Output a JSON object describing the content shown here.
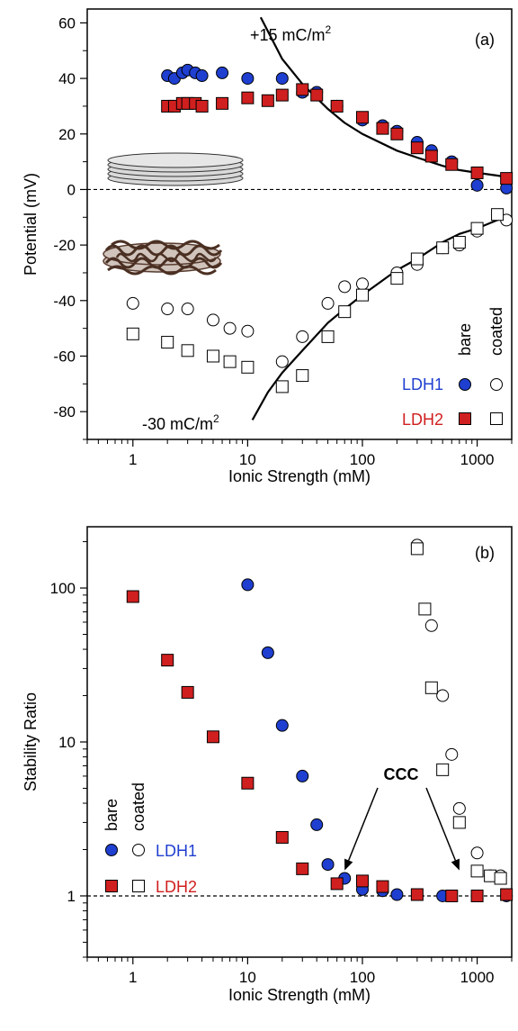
{
  "chart_data": [
    {
      "type": "scatter",
      "panel_label": "(a)",
      "xlabel": "Ionic Strength (mM)",
      "ylabel": "Potential (mV)",
      "xscale": "log",
      "xlim": [
        0.4,
        2000
      ],
      "ylim": [
        -90,
        65
      ],
      "x_ticks": [
        1,
        10,
        100,
        1000
      ],
      "x_tick_labels": [
        "1",
        "10",
        "100",
        "1000"
      ],
      "y_ticks": [
        -80,
        -60,
        -40,
        -20,
        0,
        20,
        40,
        60
      ],
      "y_tick_labels": [
        "-80",
        "-60",
        "-40",
        "-20",
        "0",
        "20",
        "40",
        "60"
      ],
      "reference_line_y": 0,
      "annotations": [
        {
          "text": "+15 mC/m",
          "sup": "2"
        },
        {
          "text": "-30 mC/m",
          "sup": "2"
        }
      ],
      "legend": {
        "headers": [
          "bare",
          "coated"
        ],
        "rows": [
          {
            "label": "LDH1",
            "color": "#1f3fd0"
          },
          {
            "label": "LDH2",
            "color": "#d01f1f"
          }
        ]
      },
      "series": [
        {
          "key": "ldh1_bare",
          "marker": "circle",
          "filled": true,
          "color": "#1f3fd0",
          "x": [
            2,
            2.3,
            2.7,
            3,
            3.5,
            4,
            6,
            10,
            20,
            30,
            40,
            60,
            100,
            150,
            200,
            300,
            400,
            600,
            1000,
            1800
          ],
          "y": [
            41,
            40,
            42,
            43,
            42,
            41,
            42,
            40,
            40,
            35,
            35,
            30,
            25,
            23,
            21,
            17,
            14,
            10,
            1.5,
            0.5
          ]
        },
        {
          "key": "ldh2_bare",
          "marker": "square",
          "filled": true,
          "color": "#d01f1f",
          "x": [
            2,
            2.3,
            2.7,
            3,
            3.5,
            4,
            6,
            10,
            15,
            20,
            30,
            40,
            60,
            100,
            150,
            200,
            300,
            400,
            600,
            1000,
            1800
          ],
          "y": [
            30,
            30,
            31,
            31,
            31,
            30,
            31,
            33,
            32,
            34,
            36,
            34,
            30,
            26,
            22,
            20,
            15,
            12,
            9,
            6,
            4
          ]
        },
        {
          "key": "ldh1_coated",
          "marker": "circle",
          "filled": false,
          "color": "#000000",
          "x": [
            1,
            2,
            3,
            5,
            7,
            10,
            20,
            30,
            50,
            70,
            100,
            200,
            300,
            500,
            700,
            1000,
            1800
          ],
          "y": [
            -41,
            -43,
            -43,
            -47,
            -50,
            -51,
            -62,
            -53,
            -41,
            -35,
            -34,
            -30,
            -27,
            -21,
            -20,
            -15,
            -11
          ]
        },
        {
          "key": "ldh2_coated",
          "marker": "square",
          "filled": false,
          "color": "#000000",
          "x": [
            1,
            2,
            3,
            5,
            7,
            10,
            20,
            30,
            50,
            70,
            100,
            200,
            300,
            500,
            700,
            1000,
            1500
          ],
          "y": [
            -52,
            -55,
            -58,
            -60,
            -62,
            -64,
            -71,
            -67,
            -53,
            -44,
            -38,
            -32,
            -25,
            -21,
            -19,
            -14,
            -9
          ]
        }
      ],
      "fit_curves": [
        {
          "label": "+15 mC/m2",
          "x": [
            13,
            20,
            30,
            50,
            70,
            100,
            200,
            300,
            500,
            700,
            1000,
            1500,
            1800
          ],
          "y": [
            62,
            47,
            38,
            29,
            24,
            20,
            14,
            11.5,
            8.5,
            7,
            6,
            5,
            4.5
          ]
        },
        {
          "label": "-30 mC/m2",
          "x": [
            11,
            15,
            20,
            30,
            50,
            70,
            100,
            200,
            300,
            500,
            700,
            1000,
            1500,
            1800
          ],
          "y": [
            -83,
            -73,
            -66,
            -58,
            -48,
            -43,
            -38,
            -29,
            -25,
            -19,
            -16,
            -14,
            -11,
            -10
          ]
        }
      ]
    },
    {
      "type": "scatter",
      "panel_label": "(b)",
      "xlabel": "Ionic Strength (mM)",
      "ylabel": "Stability Ratio",
      "xscale": "log",
      "yscale": "log",
      "xlim": [
        0.4,
        2000
      ],
      "ylim": [
        0.4,
        250
      ],
      "x_ticks": [
        1,
        10,
        100,
        1000
      ],
      "x_tick_labels": [
        "1",
        "10",
        "100",
        "1000"
      ],
      "y_ticks": [
        1,
        10,
        100
      ],
      "y_tick_labels": [
        "1",
        "10",
        "100"
      ],
      "reference_line_y": 1,
      "annotations": [
        {
          "text": "CCC",
          "arrows_to": [
            [
              70,
              1.28
            ],
            [
              700,
              1.28
            ]
          ]
        }
      ],
      "legend": {
        "headers": [
          "bare",
          "coated"
        ],
        "rows": [
          {
            "label": "LDH1",
            "color": "#1f3fd0"
          },
          {
            "label": "LDH2",
            "color": "#d01f1f"
          }
        ]
      },
      "series": [
        {
          "key": "ldh1_bare",
          "marker": "circle",
          "filled": true,
          "color": "#1f3fd0",
          "x": [
            10,
            15,
            20,
            30,
            40,
            50,
            70,
            100,
            150,
            200,
            500,
            1000,
            1800
          ],
          "y": [
            105,
            38,
            12.8,
            6,
            2.9,
            1.6,
            1.3,
            1.1,
            1.08,
            1.02,
            1.0,
            1.0,
            1.0
          ]
        },
        {
          "key": "ldh2_bare",
          "marker": "square",
          "filled": true,
          "color": "#d01f1f",
          "x": [
            1,
            2,
            3,
            5,
            10,
            20,
            30,
            60,
            100,
            150,
            300,
            600,
            1000,
            1800
          ],
          "y": [
            88,
            34,
            21,
            10.8,
            5.4,
            2.4,
            1.5,
            1.2,
            1.25,
            1.15,
            1.02,
            1.0,
            1.0,
            1.02
          ]
        },
        {
          "key": "ldh1_coated",
          "marker": "circle",
          "filled": false,
          "color": "#000000",
          "x": [
            300,
            400,
            500,
            600,
            700,
            1000,
            1300,
            1600
          ],
          "y": [
            190,
            57,
            20,
            8.3,
            3.7,
            1.9,
            1.35,
            1.35
          ]
        },
        {
          "key": "ldh2_coated",
          "marker": "square",
          "filled": false,
          "color": "#000000",
          "x": [
            300,
            350,
            400,
            500,
            700,
            1000,
            1300,
            1600
          ],
          "y": [
            180,
            73,
            22.5,
            6.6,
            3.0,
            1.45,
            1.35,
            1.3
          ]
        }
      ]
    }
  ]
}
